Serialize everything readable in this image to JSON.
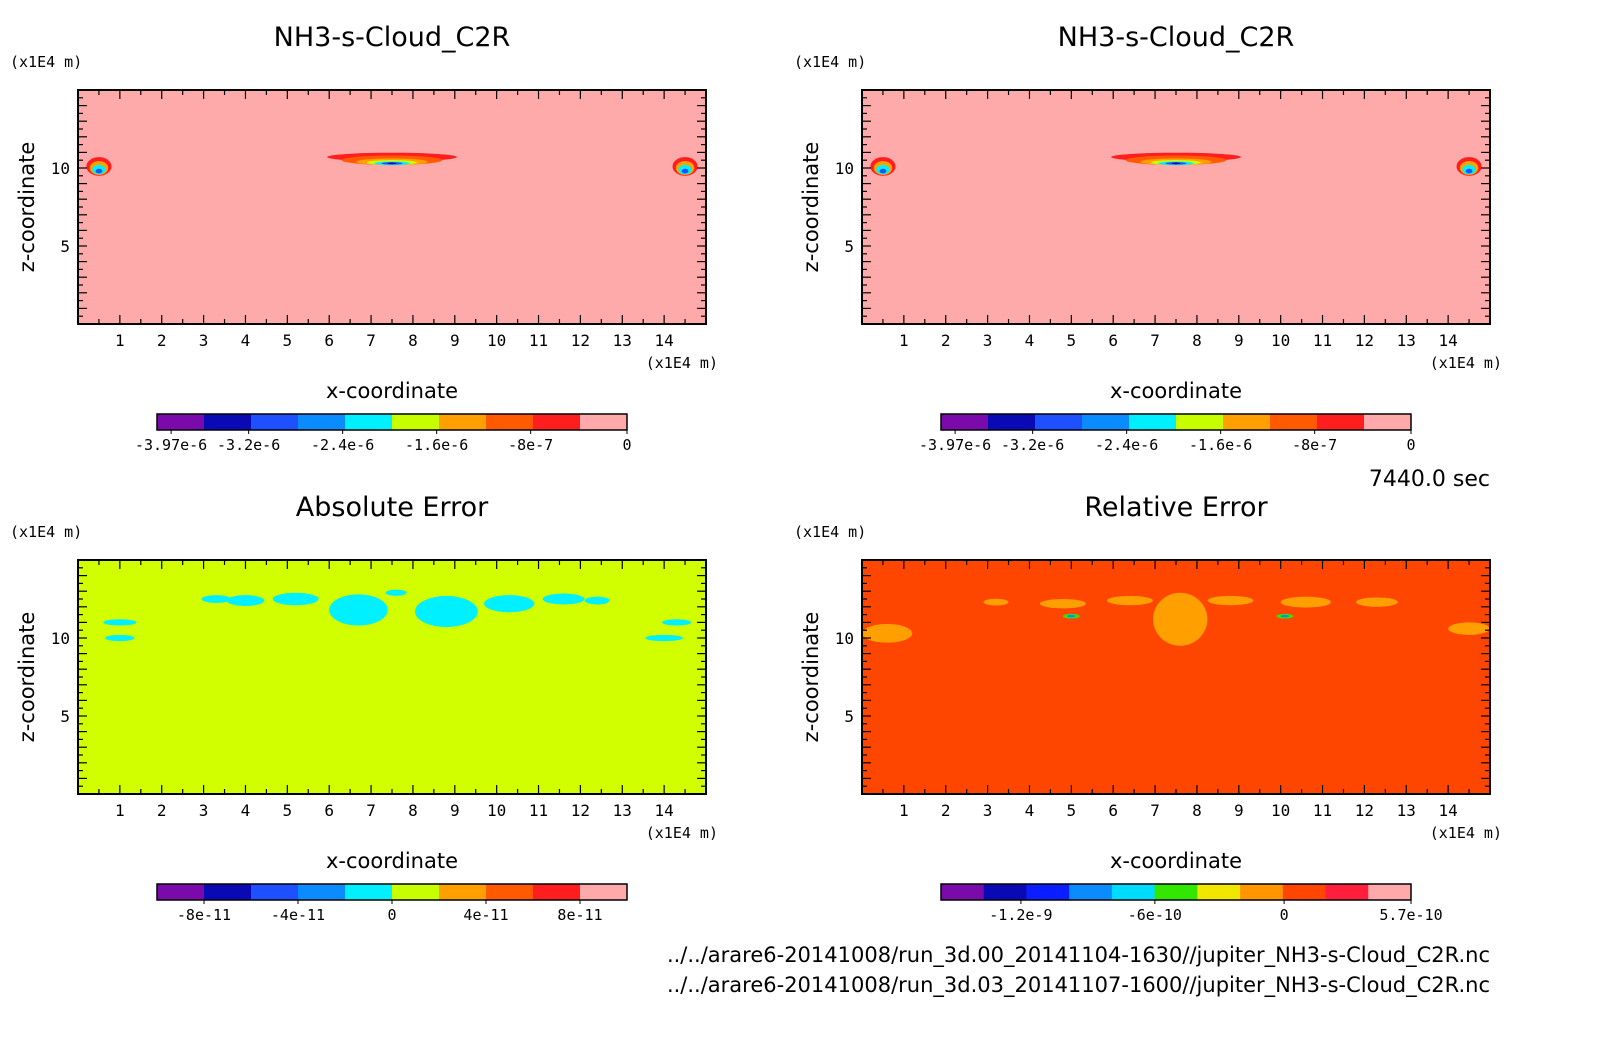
{
  "chart_data": [
    {
      "type": "heatmap",
      "title": "NH3-s-Cloud_C2R",
      "xlabel": "x-coordinate",
      "ylabel": "z-coordinate",
      "x_unit": "(x1E4 m)",
      "z_unit": "(x1E4 m)",
      "xlim": [
        0,
        15
      ],
      "zlim": [
        0,
        15
      ],
      "x_ticks": [
        "1",
        "2",
        "3",
        "4",
        "5",
        "6",
        "7",
        "8",
        "9",
        "10",
        "11",
        "12",
        "13",
        "14"
      ],
      "z_ticks": [
        "5",
        "10"
      ],
      "background_color": "#ffaaaa",
      "colorbar": {
        "colors": [
          "#7a0aaa",
          "#0a0ab4",
          "#1e50ff",
          "#0a8cff",
          "#00f0ff",
          "#c8ff00",
          "#ffa000",
          "#ff5a00",
          "#ff1e1e",
          "#ffaaaa"
        ],
        "labels": [
          "-3.97e-6",
          "-3.2e-6",
          "-2.4e-6",
          "-1.6e-6",
          "-8e-7",
          "0"
        ]
      },
      "features": [
        "central cloud band near x=7.5, z=10.5 (min about -3.97e-6)",
        "edge clouds at x=0.5 and x=14.5, z=10"
      ]
    },
    {
      "type": "heatmap",
      "title": "NH3-s-Cloud_C2R",
      "xlabel": "x-coordinate",
      "ylabel": "z-coordinate",
      "x_unit": "(x1E4 m)",
      "z_unit": "(x1E4 m)",
      "xlim": [
        0,
        15
      ],
      "zlim": [
        0,
        15
      ],
      "x_ticks": [
        "1",
        "2",
        "3",
        "4",
        "5",
        "6",
        "7",
        "8",
        "9",
        "10",
        "11",
        "12",
        "13",
        "14"
      ],
      "z_ticks": [
        "5",
        "10"
      ],
      "background_color": "#ffaaaa",
      "colorbar": {
        "colors": [
          "#7a0aaa",
          "#0a0ab4",
          "#1e50ff",
          "#0a8cff",
          "#00f0ff",
          "#c8ff00",
          "#ffa000",
          "#ff5a00",
          "#ff1e1e",
          "#ffaaaa"
        ],
        "labels": [
          "-3.97e-6",
          "-3.2e-6",
          "-2.4e-6",
          "-1.6e-6",
          "-8e-7",
          "0"
        ]
      },
      "features": [
        "central cloud band near x=7.5, z=10.5",
        "edge clouds at x=0.5 and x=14.5, z=10"
      ]
    },
    {
      "type": "heatmap",
      "title": "Absolute Error",
      "xlabel": "x-coordinate",
      "ylabel": "z-coordinate",
      "x_unit": "(x1E4 m)",
      "z_unit": "(x1E4 m)",
      "xlim": [
        0,
        15
      ],
      "zlim": [
        0,
        15
      ],
      "x_ticks": [
        "1",
        "2",
        "3",
        "4",
        "5",
        "6",
        "7",
        "8",
        "9",
        "10",
        "11",
        "12",
        "13",
        "14"
      ],
      "z_ticks": [
        "5",
        "10"
      ],
      "background_color": "#d2ff00",
      "colorbar": {
        "colors": [
          "#7a0aaa",
          "#0a0ab4",
          "#1e50ff",
          "#0a8cff",
          "#00f0ff",
          "#c8ff00",
          "#ffa000",
          "#ff5a00",
          "#ff1e1e",
          "#ffaaaa"
        ],
        "labels": [
          "-8e-11",
          "-4e-11",
          "0",
          "4e-11",
          "8e-11"
        ]
      },
      "features": [
        "cyan error patches between x=1 and x=14 at z=10 to 13"
      ]
    },
    {
      "type": "heatmap",
      "title": "Relative Error",
      "xlabel": "x-coordinate",
      "ylabel": "z-coordinate",
      "x_unit": "(x1E4 m)",
      "z_unit": "(x1E4 m)",
      "xlim": [
        0,
        15
      ],
      "zlim": [
        0,
        15
      ],
      "x_ticks": [
        "1",
        "2",
        "3",
        "4",
        "5",
        "6",
        "7",
        "8",
        "9",
        "10",
        "11",
        "12",
        "13",
        "14"
      ],
      "z_ticks": [
        "5",
        "10"
      ],
      "background_color": "#ff4600",
      "colorbar": {
        "colors": [
          "#7a0aaa",
          "#0a0ab4",
          "#0a1eff",
          "#0a8cff",
          "#00dcff",
          "#32e600",
          "#f0e600",
          "#ff9600",
          "#ff4600",
          "#ff1e3c",
          "#ffaaaa"
        ],
        "labels": [
          "-1.2e-9",
          "-6e-10",
          "0",
          "5.7e-10"
        ]
      },
      "features": [
        "orange patches between x=1 and x=14 at z=9 to 13, small blue spots near x=5 and x=10"
      ]
    }
  ],
  "time_label": "7440.0 sec",
  "file_paths": [
    "../../arare6-20141008/run_3d.00_20141104-1630//jupiter_NH3-s-Cloud_C2R.nc",
    "../../arare6-20141008/run_3d.03_20141107-1600//jupiter_NH3-s-Cloud_C2R.nc"
  ]
}
